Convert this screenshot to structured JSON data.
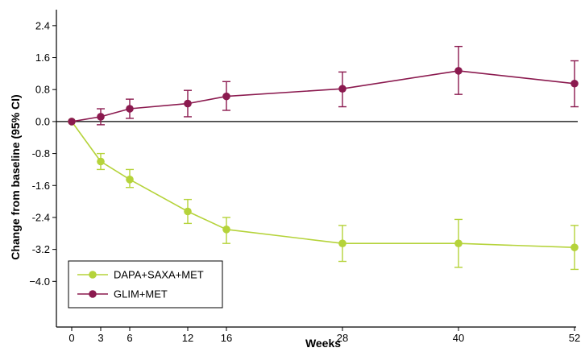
{
  "chart_data": {
    "type": "line",
    "title": "",
    "xlabel": "Weeks",
    "ylabel": "Change from baseline (95% CI)",
    "x": [
      0,
      3,
      6,
      12,
      16,
      28,
      40,
      52
    ],
    "xticks": [
      "0",
      "3",
      "6",
      "12",
      "16",
      "28",
      "40",
      "52"
    ],
    "xlim": [
      0,
      52
    ],
    "ylim": [
      -4.8,
      2.8
    ],
    "yticks": [
      "2.4",
      "1.6",
      "0.8",
      "0.0",
      "-0.8",
      "-1.6",
      "-2.4",
      "-3.2",
      "−4.0"
    ],
    "ytick_values": [
      2.4,
      1.6,
      0.8,
      0.0,
      -0.8,
      -1.6,
      -2.4,
      -3.2,
      -4.0
    ],
    "grid": false,
    "reference_line_y": 0.0,
    "legend_position": "bottom-left",
    "series": [
      {
        "name": "DAPA+SAXA+MET",
        "color": "#b5d33a",
        "values": [
          0.0,
          -1.0,
          -1.45,
          -2.25,
          -2.7,
          -3.05,
          -3.05,
          -3.15
        ],
        "ci_low": [
          0.0,
          -1.2,
          -1.65,
          -2.55,
          -3.05,
          -3.5,
          -3.65,
          -3.7
        ],
        "ci_high": [
          0.0,
          -0.8,
          -1.2,
          -1.95,
          -2.4,
          -2.6,
          -2.45,
          -2.6
        ]
      },
      {
        "name": "GLIM+MET",
        "color": "#8b1a4f",
        "values": [
          0.0,
          0.12,
          0.32,
          0.45,
          0.63,
          0.82,
          1.27,
          0.95
        ],
        "ci_low": [
          0.0,
          -0.08,
          0.08,
          0.12,
          0.28,
          0.37,
          0.68,
          0.37
        ],
        "ci_high": [
          0.0,
          0.32,
          0.56,
          0.78,
          1.0,
          1.24,
          1.88,
          1.52
        ]
      }
    ]
  }
}
